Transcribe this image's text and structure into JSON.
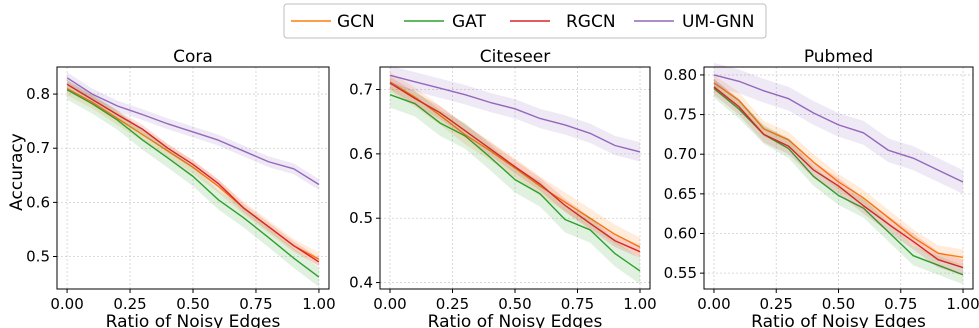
{
  "chart_data": [
    {
      "type": "line",
      "title": "Cora",
      "xlabel": "Ratio of Noisy Edges",
      "ylabel": "Accuracy",
      "xlim": [
        -0.04,
        1.04
      ],
      "ylim": [
        0.44,
        0.85
      ],
      "xticks": [
        "0.00",
        "0.25",
        "0.50",
        "0.75",
        "1.00"
      ],
      "yticks": [
        "0.5",
        "0.6",
        "0.7",
        "0.8"
      ],
      "x": [
        0,
        0.1,
        0.2,
        0.3,
        0.4,
        0.5,
        0.6,
        0.7,
        0.8,
        0.9,
        1.0
      ],
      "grid": true,
      "series": [
        {
          "name": "GCN",
          "color": "#ff7f0e",
          "values": [
            0.81,
            0.785,
            0.755,
            0.725,
            0.695,
            0.665,
            0.63,
            0.59,
            0.555,
            0.52,
            0.495
          ],
          "band": 0.012
        },
        {
          "name": "GAT",
          "color": "#2ca02c",
          "values": [
            0.808,
            0.782,
            0.752,
            0.715,
            0.682,
            0.648,
            0.605,
            0.572,
            0.535,
            0.497,
            0.462
          ],
          "band": 0.018
        },
        {
          "name": "RGCN",
          "color": "#d62728",
          "values": [
            0.818,
            0.79,
            0.762,
            0.735,
            0.7,
            0.67,
            0.635,
            0.59,
            0.555,
            0.52,
            0.49
          ],
          "band": 0.008
        },
        {
          "name": "UM-GNN",
          "color": "#9467bd",
          "values": [
            0.83,
            0.8,
            0.778,
            0.762,
            0.745,
            0.73,
            0.715,
            0.695,
            0.675,
            0.662,
            0.633
          ],
          "band": 0.01
        }
      ]
    },
    {
      "type": "line",
      "title": "Citeseer",
      "xlabel": "Ratio of Noisy Edges",
      "ylabel": "",
      "xlim": [
        -0.04,
        1.04
      ],
      "ylim": [
        0.39,
        0.735
      ],
      "xticks": [
        "0.00",
        "0.25",
        "0.50",
        "0.75",
        "1.00"
      ],
      "yticks": [
        "0.4",
        "0.5",
        "0.6",
        "0.7"
      ],
      "x": [
        0,
        0.1,
        0.2,
        0.3,
        0.4,
        0.5,
        0.6,
        0.7,
        0.8,
        0.9,
        1.0
      ],
      "grid": true,
      "series": [
        {
          "name": "GCN",
          "color": "#ff7f0e",
          "values": [
            0.712,
            0.688,
            0.66,
            0.63,
            0.605,
            0.578,
            0.55,
            0.525,
            0.5,
            0.475,
            0.455
          ],
          "band": 0.015
        },
        {
          "name": "GAT",
          "color": "#2ca02c",
          "values": [
            0.692,
            0.678,
            0.648,
            0.628,
            0.595,
            0.56,
            0.538,
            0.498,
            0.482,
            0.445,
            0.418
          ],
          "band": 0.02
        },
        {
          "name": "RGCN",
          "color": "#d62728",
          "values": [
            0.71,
            0.686,
            0.664,
            0.636,
            0.608,
            0.58,
            0.553,
            0.52,
            0.492,
            0.465,
            0.448
          ],
          "band": 0.01
        },
        {
          "name": "UM-GNN",
          "color": "#9467bd",
          "values": [
            0.722,
            0.712,
            0.702,
            0.692,
            0.68,
            0.67,
            0.655,
            0.645,
            0.632,
            0.613,
            0.603
          ],
          "band": 0.015
        }
      ]
    },
    {
      "type": "line",
      "title": "Pubmed",
      "xlabel": "Ratio of Noisy Edges",
      "ylabel": "",
      "xlim": [
        -0.04,
        1.04
      ],
      "ylim": [
        0.53,
        0.81
      ],
      "xticks": [
        "0.00",
        "0.25",
        "0.50",
        "0.75",
        "1.00"
      ],
      "yticks": [
        "0.55",
        "0.60",
        "0.65",
        "0.70",
        "0.75",
        "0.80"
      ],
      "x": [
        0,
        0.1,
        0.2,
        0.3,
        0.4,
        0.5,
        0.6,
        0.7,
        0.8,
        0.9,
        1.0
      ],
      "grid": true,
      "series": [
        {
          "name": "GCN",
          "color": "#ff7f0e",
          "values": [
            0.79,
            0.768,
            0.732,
            0.718,
            0.69,
            0.665,
            0.645,
            0.62,
            0.595,
            0.575,
            0.57
          ],
          "band": 0.01
        },
        {
          "name": "GAT",
          "color": "#2ca02c",
          "values": [
            0.783,
            0.757,
            0.725,
            0.707,
            0.672,
            0.648,
            0.632,
            0.602,
            0.572,
            0.56,
            0.548
          ],
          "band": 0.012
        },
        {
          "name": "RGCN",
          "color": "#d62728",
          "values": [
            0.785,
            0.76,
            0.725,
            0.71,
            0.68,
            0.66,
            0.635,
            0.612,
            0.59,
            0.567,
            0.557
          ],
          "band": 0.01
        },
        {
          "name": "UM-GNN",
          "color": "#9467bd",
          "values": [
            0.8,
            0.792,
            0.78,
            0.77,
            0.752,
            0.737,
            0.727,
            0.705,
            0.695,
            0.68,
            0.665
          ],
          "band": 0.015
        }
      ]
    }
  ],
  "legend": {
    "placement": "top-center",
    "entries": [
      {
        "label": "GCN",
        "color": "#ff7f0e"
      },
      {
        "label": "GAT",
        "color": "#2ca02c"
      },
      {
        "label": "RGCN",
        "color": "#d62728"
      },
      {
        "label": "UM-GNN",
        "color": "#9467bd"
      }
    ]
  }
}
